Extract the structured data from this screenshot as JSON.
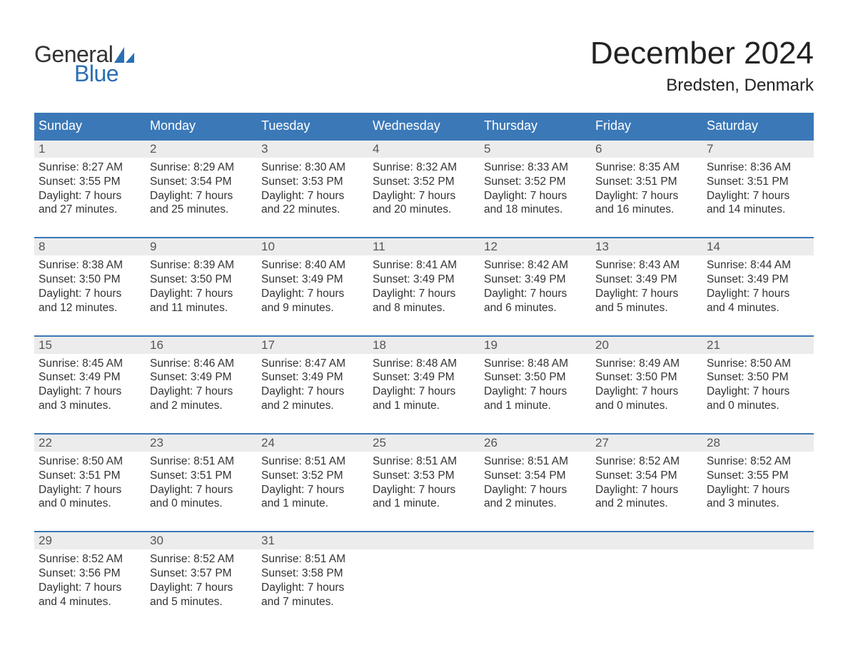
{
  "brand": {
    "word1": "General",
    "word2": "Blue",
    "word1_color": "#333333",
    "word2_color": "#2a6fb5",
    "sail_color": "#2a6fb5"
  },
  "header": {
    "month_title": "December 2024",
    "location": "Bredsten, Denmark"
  },
  "style": {
    "header_bg": "#3b78b8",
    "header_text": "#ffffff",
    "daynum_bg": "#ececec",
    "daynum_color": "#555555",
    "body_text": "#333333",
    "row_border": "#3b78b8",
    "page_bg": "#ffffff",
    "title_fontsize": 44,
    "location_fontsize": 24,
    "weekday_fontsize": 18,
    "cell_fontsize": 15.5
  },
  "weekdays": [
    "Sunday",
    "Monday",
    "Tuesday",
    "Wednesday",
    "Thursday",
    "Friday",
    "Saturday"
  ],
  "weeks": [
    [
      {
        "day": "1",
        "sunrise": "Sunrise: 8:27 AM",
        "sunset": "Sunset: 3:55 PM",
        "d1": "Daylight: 7 hours",
        "d2": "and 27 minutes."
      },
      {
        "day": "2",
        "sunrise": "Sunrise: 8:29 AM",
        "sunset": "Sunset: 3:54 PM",
        "d1": "Daylight: 7 hours",
        "d2": "and 25 minutes."
      },
      {
        "day": "3",
        "sunrise": "Sunrise: 8:30 AM",
        "sunset": "Sunset: 3:53 PM",
        "d1": "Daylight: 7 hours",
        "d2": "and 22 minutes."
      },
      {
        "day": "4",
        "sunrise": "Sunrise: 8:32 AM",
        "sunset": "Sunset: 3:52 PM",
        "d1": "Daylight: 7 hours",
        "d2": "and 20 minutes."
      },
      {
        "day": "5",
        "sunrise": "Sunrise: 8:33 AM",
        "sunset": "Sunset: 3:52 PM",
        "d1": "Daylight: 7 hours",
        "d2": "and 18 minutes."
      },
      {
        "day": "6",
        "sunrise": "Sunrise: 8:35 AM",
        "sunset": "Sunset: 3:51 PM",
        "d1": "Daylight: 7 hours",
        "d2": "and 16 minutes."
      },
      {
        "day": "7",
        "sunrise": "Sunrise: 8:36 AM",
        "sunset": "Sunset: 3:51 PM",
        "d1": "Daylight: 7 hours",
        "d2": "and 14 minutes."
      }
    ],
    [
      {
        "day": "8",
        "sunrise": "Sunrise: 8:38 AM",
        "sunset": "Sunset: 3:50 PM",
        "d1": "Daylight: 7 hours",
        "d2": "and 12 minutes."
      },
      {
        "day": "9",
        "sunrise": "Sunrise: 8:39 AM",
        "sunset": "Sunset: 3:50 PM",
        "d1": "Daylight: 7 hours",
        "d2": "and 11 minutes."
      },
      {
        "day": "10",
        "sunrise": "Sunrise: 8:40 AM",
        "sunset": "Sunset: 3:49 PM",
        "d1": "Daylight: 7 hours",
        "d2": "and 9 minutes."
      },
      {
        "day": "11",
        "sunrise": "Sunrise: 8:41 AM",
        "sunset": "Sunset: 3:49 PM",
        "d1": "Daylight: 7 hours",
        "d2": "and 8 minutes."
      },
      {
        "day": "12",
        "sunrise": "Sunrise: 8:42 AM",
        "sunset": "Sunset: 3:49 PM",
        "d1": "Daylight: 7 hours",
        "d2": "and 6 minutes."
      },
      {
        "day": "13",
        "sunrise": "Sunrise: 8:43 AM",
        "sunset": "Sunset: 3:49 PM",
        "d1": "Daylight: 7 hours",
        "d2": "and 5 minutes."
      },
      {
        "day": "14",
        "sunrise": "Sunrise: 8:44 AM",
        "sunset": "Sunset: 3:49 PM",
        "d1": "Daylight: 7 hours",
        "d2": "and 4 minutes."
      }
    ],
    [
      {
        "day": "15",
        "sunrise": "Sunrise: 8:45 AM",
        "sunset": "Sunset: 3:49 PM",
        "d1": "Daylight: 7 hours",
        "d2": "and 3 minutes."
      },
      {
        "day": "16",
        "sunrise": "Sunrise: 8:46 AM",
        "sunset": "Sunset: 3:49 PM",
        "d1": "Daylight: 7 hours",
        "d2": "and 2 minutes."
      },
      {
        "day": "17",
        "sunrise": "Sunrise: 8:47 AM",
        "sunset": "Sunset: 3:49 PM",
        "d1": "Daylight: 7 hours",
        "d2": "and 2 minutes."
      },
      {
        "day": "18",
        "sunrise": "Sunrise: 8:48 AM",
        "sunset": "Sunset: 3:49 PM",
        "d1": "Daylight: 7 hours",
        "d2": "and 1 minute."
      },
      {
        "day": "19",
        "sunrise": "Sunrise: 8:48 AM",
        "sunset": "Sunset: 3:50 PM",
        "d1": "Daylight: 7 hours",
        "d2": "and 1 minute."
      },
      {
        "day": "20",
        "sunrise": "Sunrise: 8:49 AM",
        "sunset": "Sunset: 3:50 PM",
        "d1": "Daylight: 7 hours",
        "d2": "and 0 minutes."
      },
      {
        "day": "21",
        "sunrise": "Sunrise: 8:50 AM",
        "sunset": "Sunset: 3:50 PM",
        "d1": "Daylight: 7 hours",
        "d2": "and 0 minutes."
      }
    ],
    [
      {
        "day": "22",
        "sunrise": "Sunrise: 8:50 AM",
        "sunset": "Sunset: 3:51 PM",
        "d1": "Daylight: 7 hours",
        "d2": "and 0 minutes."
      },
      {
        "day": "23",
        "sunrise": "Sunrise: 8:51 AM",
        "sunset": "Sunset: 3:51 PM",
        "d1": "Daylight: 7 hours",
        "d2": "and 0 minutes."
      },
      {
        "day": "24",
        "sunrise": "Sunrise: 8:51 AM",
        "sunset": "Sunset: 3:52 PM",
        "d1": "Daylight: 7 hours",
        "d2": "and 1 minute."
      },
      {
        "day": "25",
        "sunrise": "Sunrise: 8:51 AM",
        "sunset": "Sunset: 3:53 PM",
        "d1": "Daylight: 7 hours",
        "d2": "and 1 minute."
      },
      {
        "day": "26",
        "sunrise": "Sunrise: 8:51 AM",
        "sunset": "Sunset: 3:54 PM",
        "d1": "Daylight: 7 hours",
        "d2": "and 2 minutes."
      },
      {
        "day": "27",
        "sunrise": "Sunrise: 8:52 AM",
        "sunset": "Sunset: 3:54 PM",
        "d1": "Daylight: 7 hours",
        "d2": "and 2 minutes."
      },
      {
        "day": "28",
        "sunrise": "Sunrise: 8:52 AM",
        "sunset": "Sunset: 3:55 PM",
        "d1": "Daylight: 7 hours",
        "d2": "and 3 minutes."
      }
    ],
    [
      {
        "day": "29",
        "sunrise": "Sunrise: 8:52 AM",
        "sunset": "Sunset: 3:56 PM",
        "d1": "Daylight: 7 hours",
        "d2": "and 4 minutes."
      },
      {
        "day": "30",
        "sunrise": "Sunrise: 8:52 AM",
        "sunset": "Sunset: 3:57 PM",
        "d1": "Daylight: 7 hours",
        "d2": "and 5 minutes."
      },
      {
        "day": "31",
        "sunrise": "Sunrise: 8:51 AM",
        "sunset": "Sunset: 3:58 PM",
        "d1": "Daylight: 7 hours",
        "d2": "and 7 minutes."
      },
      null,
      null,
      null,
      null
    ]
  ]
}
